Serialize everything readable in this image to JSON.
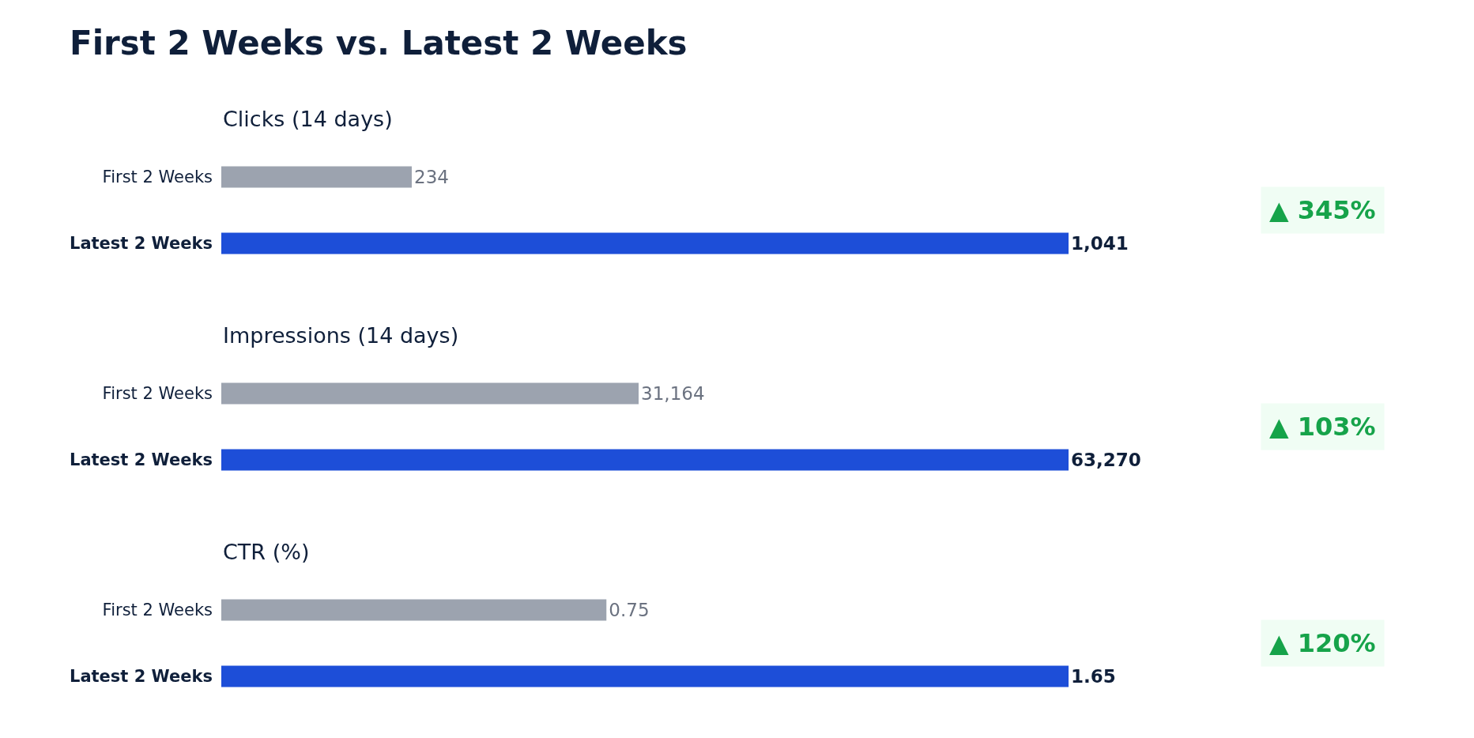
{
  "chart_data": [
    {
      "type": "bar",
      "orientation": "horizontal",
      "title": "First 2 Weeks vs. Latest 2 Weeks",
      "subtitle": "Clicks (14 days)",
      "categories": [
        "First 2 Weeks",
        "Latest 2 Weeks"
      ],
      "values": [
        234,
        1041
      ],
      "colors": [
        "#9ca3af",
        "#1d4ed8"
      ],
      "value_labels": [
        "234",
        "1,041"
      ],
      "xlim": [
        0,
        1041
      ],
      "tick_labels": "y",
      "grid": false,
      "legend": false,
      "annotations": [
        "▲ 345%"
      ]
    },
    {
      "type": "bar",
      "orientation": "horizontal",
      "title": "Impressions (14 days)",
      "categories": [
        "First 2 Weeks",
        "Latest 2 Weeks"
      ],
      "values": [
        31164,
        63270
      ],
      "colors": [
        "#9ca3af",
        "#1d4ed8"
      ],
      "value_labels": [
        "31,164",
        "63,270"
      ],
      "xlim": [
        0,
        63270
      ],
      "tick_labels": "y",
      "grid": false,
      "legend": false,
      "annotations": [
        "▲ 103%"
      ]
    },
    {
      "type": "bar",
      "orientation": "horizontal",
      "title": "CTR (%)",
      "categories": [
        "First 2 Weeks",
        "Latest 2 Weeks"
      ],
      "values": [
        0.75,
        1.65
      ],
      "colors": [
        "#9ca3af",
        "#1d4ed8"
      ],
      "value_labels": [
        "0.75",
        "1.65"
      ],
      "xlim": [
        0,
        1.65
      ],
      "tick_labels": "y",
      "grid": false,
      "legend": false,
      "annotations": [
        "▲ 120%"
      ]
    }
  ]
}
